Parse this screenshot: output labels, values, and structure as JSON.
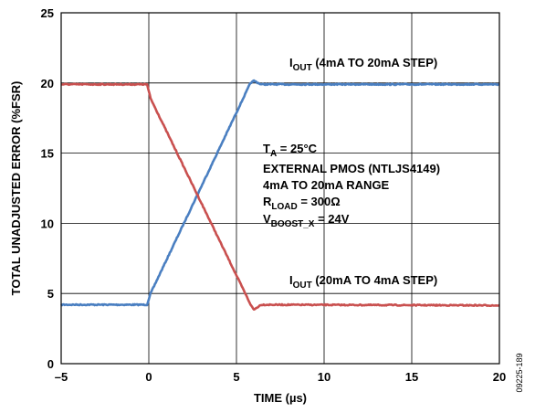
{
  "chart_data": {
    "type": "line",
    "xlabel": "TIME (µs)",
    "ylabel": "TOTAL UNADJUSTED ERROR (%FSR)",
    "xlim": [
      -5,
      20
    ],
    "ylim": [
      0,
      25
    ],
    "x_ticks": [
      "–5",
      "0",
      "5",
      "10",
      "15",
      "20"
    ],
    "y_ticks": [
      "0",
      "5",
      "10",
      "15",
      "20",
      "25"
    ],
    "x_tick_values": [
      -5,
      0,
      5,
      10,
      15,
      20
    ],
    "y_tick_values": [
      0,
      5,
      10,
      15,
      20,
      25
    ],
    "grid": true,
    "series": [
      {
        "label_parts": [
          "I",
          "OUT",
          " (4mA TO 20mA STEP)"
        ],
        "color": "#4a7fc1",
        "points": [
          [
            -5,
            4.2
          ],
          [
            -0.1,
            4.2
          ],
          [
            0.1,
            5.0
          ],
          [
            5.8,
            20.0
          ],
          [
            6.0,
            20.15
          ],
          [
            6.4,
            19.9
          ],
          [
            20,
            19.9
          ]
        ]
      },
      {
        "label_parts": [
          "I",
          "OUT",
          " (20mA TO 4mA STEP)"
        ],
        "color": "#c9504f",
        "points": [
          [
            -5,
            19.9
          ],
          [
            -0.1,
            19.9
          ],
          [
            0.1,
            18.9
          ],
          [
            5.85,
            4.1
          ],
          [
            6.0,
            3.85
          ],
          [
            6.4,
            4.2
          ],
          [
            20,
            4.15
          ]
        ]
      }
    ],
    "conditions": [
      {
        "main": "T",
        "sub": "A",
        "rest": " = 25°C"
      },
      {
        "main": "EXTERNAL PMOS (NTLJS4149)",
        "sub": "",
        "rest": ""
      },
      {
        "main": "4mA TO 20mA RANGE",
        "sub": "",
        "rest": ""
      },
      {
        "main": "R",
        "sub": "LOAD",
        "rest": " = 300Ω"
      },
      {
        "main": "V",
        "sub": "BOOST_X",
        "rest": " = 24V"
      }
    ],
    "figure_id": "09225-189"
  }
}
